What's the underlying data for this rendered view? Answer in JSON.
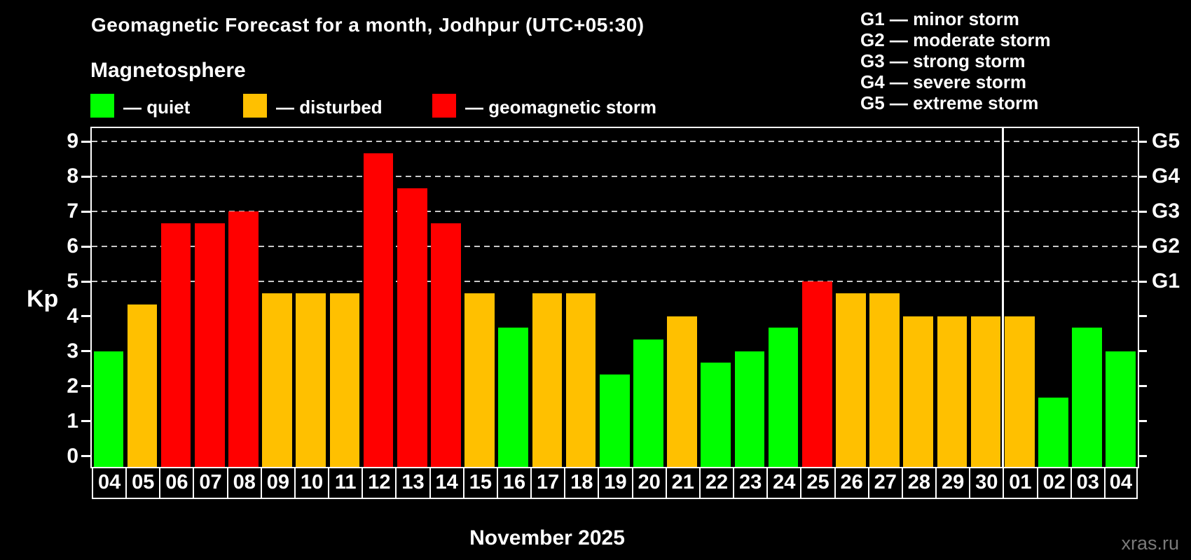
{
  "title": "Geomagnetic Forecast for a month, Jodhpur (UTC+05:30)",
  "subtitle": "Magnetosphere",
  "legend": [
    {
      "key": "quiet",
      "label": "— quiet"
    },
    {
      "key": "disturbed",
      "label": "— disturbed"
    },
    {
      "key": "storm",
      "label": "— geomagnetic storm"
    }
  ],
  "storm_scale_legend": [
    "G1 — minor storm",
    "G2 — moderate storm",
    "G3 — strong storm",
    "G4 — severe storm",
    "G5 — extreme storm"
  ],
  "ylabel": "Kp",
  "month_label": "November 2025",
  "watermark": "xras.ru",
  "chart_data": {
    "type": "bar",
    "title": "Geomagnetic Forecast for a month, Jodhpur (UTC+05:30)",
    "xlabel": "November 2025",
    "ylabel": "Kp",
    "ylim": [
      0,
      9
    ],
    "yticks": [
      "0",
      "1",
      "2",
      "3",
      "4",
      "5",
      "6",
      "7",
      "8",
      "9"
    ],
    "gridlines_at": [
      5,
      6,
      7,
      8,
      9
    ],
    "grid": "dashed-horizontal",
    "right_axis_labels": {
      "5": "G1",
      "6": "G2",
      "7": "G3",
      "8": "G4",
      "9": "G5"
    },
    "month_boundary_after_index": 26,
    "colors": {
      "quiet": "#00ff00",
      "disturbed": "#ffc000",
      "storm": "#ff0000"
    },
    "categories": [
      "04",
      "05",
      "06",
      "07",
      "08",
      "09",
      "10",
      "11",
      "12",
      "13",
      "14",
      "15",
      "16",
      "17",
      "18",
      "19",
      "20",
      "21",
      "22",
      "23",
      "24",
      "25",
      "26",
      "27",
      "28",
      "29",
      "30",
      "01",
      "02",
      "03",
      "04"
    ],
    "values": [
      3.0,
      4.33,
      6.67,
      6.67,
      7.0,
      4.67,
      4.67,
      4.67,
      8.67,
      7.67,
      6.67,
      4.67,
      3.67,
      4.67,
      4.67,
      2.33,
      3.33,
      4.0,
      2.67,
      3.0,
      3.67,
      5.0,
      4.67,
      4.67,
      4.0,
      4.0,
      4.0,
      4.0,
      1.67,
      3.67,
      3.0
    ],
    "levels": [
      "quiet",
      "disturbed",
      "storm",
      "storm",
      "storm",
      "disturbed",
      "disturbed",
      "disturbed",
      "storm",
      "storm",
      "storm",
      "disturbed",
      "quiet",
      "disturbed",
      "disturbed",
      "quiet",
      "quiet",
      "disturbed",
      "quiet",
      "quiet",
      "quiet",
      "storm",
      "disturbed",
      "disturbed",
      "disturbed",
      "disturbed",
      "disturbed",
      "disturbed",
      "quiet",
      "quiet",
      "quiet"
    ]
  }
}
